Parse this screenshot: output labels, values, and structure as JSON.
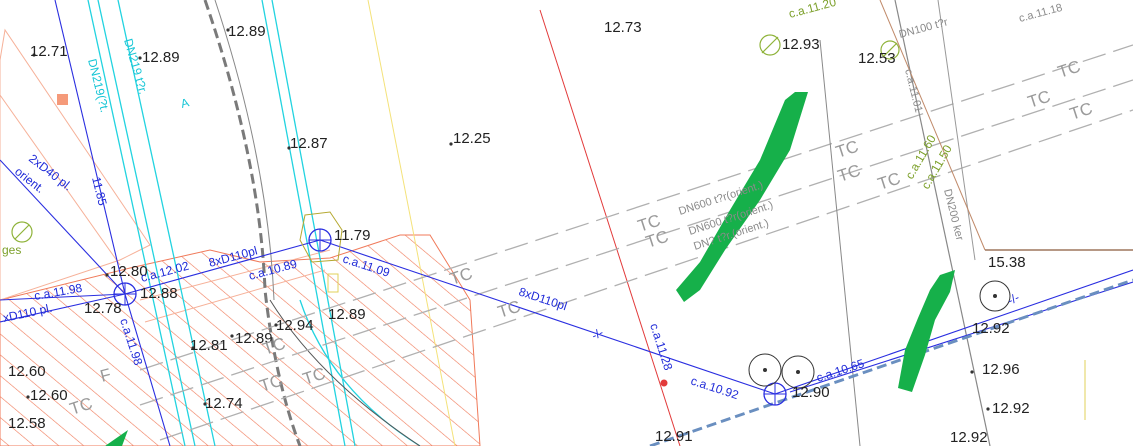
{
  "colors": {
    "background": "#ffffff",
    "pipe_blue": "#2a2ee0",
    "cyan": "#22d3e0",
    "hatch_orange": "#f07a5a",
    "green_marker": "#16b04a",
    "red_line": "#e23a3a",
    "gray_dash": "#a8a8a8",
    "olive": "#8fb33a"
  },
  "spot_heights": [
    "12.71",
    "12.89",
    "12.89",
    "12.73",
    "12.93",
    "12.53",
    "12.87",
    "12.25",
    "11.79",
    "12.80",
    "12.88",
    "12.78",
    "12.89",
    "12.81",
    "12.94",
    "12.89",
    "12.60",
    "12.60",
    "12.58",
    "12.74",
    "15.38",
    "12.92",
    "12.96",
    "12.92",
    "12.90",
    "12.91",
    "12.92"
  ],
  "pipe_labels": {
    "a": "2xD40 pl.",
    "b": "orient.",
    "c": "11.85",
    "d": "8xD110pl",
    "e": "c.a.10.89",
    "f": "c.a.11.09",
    "g": "8xD110pl",
    "h": "c.a.11.98",
    "i": "c.a.12.02",
    "j": "xD110 pl.",
    "k": "c.a.11.98",
    "l": "c.a.10.92",
    "m": "c.a.10.65",
    "n": "c.a.11.28"
  },
  "utility_labels": {
    "dn219": "DN219 t?r.",
    "dn219b": "DN219(?t.",
    "dn600a": "DN600 t?r(orient.)",
    "dn600b": "DN600 t?r(orient.)",
    "dn600c": "DN? t?r.(orient.)",
    "dn200": "DN200 ker",
    "dn100": "DN100 t?r",
    "ca1118": "c.a.11.18",
    "ca1120": "c.a.11.20",
    "ca1101": "c.a.11.01",
    "ca1160": "c.a.11.60",
    "ca1150": "c.a.11.50",
    "ges": "ges"
  },
  "tc_label": "TC",
  "zone_labels": [
    "A",
    "F"
  ],
  "marker_small": "-/-"
}
